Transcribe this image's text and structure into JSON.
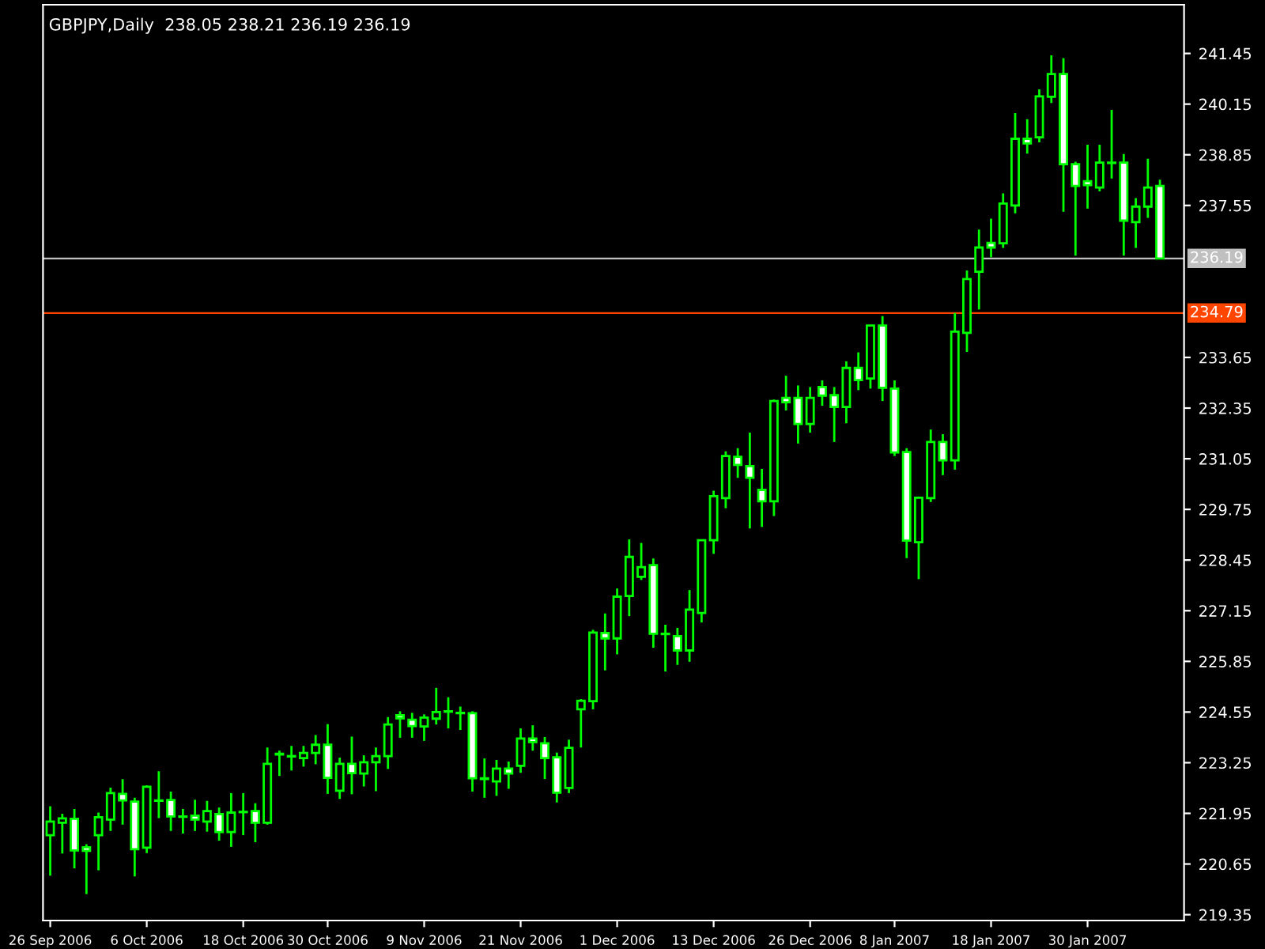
{
  "chart_data": {
    "type": "candlestick",
    "title": "GBPJPY,Daily  238.05 238.21 236.19 236.19",
    "categories": [
      "26 Sep 2006",
      null,
      null,
      null,
      null,
      null,
      null,
      null,
      "6 Oct 2006",
      null,
      null,
      null,
      null,
      null,
      null,
      null,
      "18 Oct 2006",
      null,
      null,
      null,
      null,
      null,
      null,
      "30 Oct 2006",
      null,
      null,
      null,
      null,
      null,
      null,
      null,
      "9 Nov 2006",
      null,
      null,
      null,
      null,
      null,
      null,
      null,
      "21 Nov 2006",
      null,
      null,
      null,
      null,
      null,
      null,
      null,
      "1 Dec 2006",
      null,
      null,
      null,
      null,
      null,
      null,
      null,
      "13 Dec 2006",
      null,
      null,
      null,
      null,
      null,
      null,
      null,
      "26 Dec 2006",
      null,
      null,
      null,
      null,
      null,
      null,
      "8 Jan 2007",
      null,
      null,
      null,
      null,
      null,
      null,
      null,
      "18 Jan 2007",
      null,
      null,
      null,
      null,
      null,
      null,
      null,
      "30 Jan 2007",
      null,
      null,
      null,
      null,
      null,
      null
    ],
    "color": "#00ff00",
    "ohlc": [
      [
        221.39,
        222.13,
        220.35,
        221.74
      ],
      [
        221.71,
        221.94,
        220.92,
        221.82
      ],
      [
        221.81,
        222.06,
        220.54,
        221.0
      ],
      [
        221.08,
        221.16,
        219.88,
        220.99
      ],
      [
        221.39,
        221.97,
        220.49,
        221.85
      ],
      [
        221.79,
        222.61,
        221.5,
        222.47
      ],
      [
        222.45,
        222.83,
        221.66,
        222.28
      ],
      [
        222.25,
        222.35,
        220.33,
        221.03
      ],
      [
        221.07,
        222.67,
        220.93,
        222.63
      ],
      [
        222.27,
        223.03,
        221.83,
        222.28
      ],
      [
        222.29,
        222.51,
        221.5,
        221.87
      ],
      [
        221.86,
        222.06,
        221.43,
        221.87
      ],
      [
        221.89,
        222.3,
        221.5,
        221.79
      ],
      [
        221.74,
        222.27,
        221.48,
        222.01
      ],
      [
        221.93,
        222.1,
        221.25,
        221.47
      ],
      [
        221.47,
        222.47,
        221.09,
        221.97
      ],
      [
        221.98,
        222.47,
        221.39,
        221.99
      ],
      [
        222.01,
        222.21,
        221.21,
        221.71
      ],
      [
        221.71,
        223.64,
        221.66,
        223.22
      ],
      [
        223.46,
        223.56,
        222.91,
        223.48
      ],
      [
        223.41,
        223.68,
        223.05,
        223.42
      ],
      [
        223.37,
        223.68,
        223.15,
        223.5
      ],
      [
        223.5,
        223.96,
        223.21,
        223.71
      ],
      [
        223.71,
        224.24,
        222.45,
        222.86
      ],
      [
        222.53,
        223.38,
        222.32,
        223.22
      ],
      [
        223.22,
        223.92,
        222.44,
        222.98
      ],
      [
        222.97,
        223.44,
        222.64,
        223.26
      ],
      [
        223.26,
        223.64,
        222.52,
        223.42
      ],
      [
        223.42,
        224.42,
        223.09,
        224.23
      ],
      [
        224.47,
        224.57,
        223.89,
        224.39
      ],
      [
        224.35,
        224.53,
        223.89,
        224.19
      ],
      [
        224.18,
        224.49,
        223.81,
        224.41
      ],
      [
        224.38,
        225.17,
        224.23,
        224.55
      ],
      [
        224.56,
        224.93,
        224.13,
        224.57
      ],
      [
        224.52,
        224.69,
        224.09,
        224.53
      ],
      [
        224.52,
        224.57,
        222.51,
        222.85
      ],
      [
        222.83,
        223.36,
        222.35,
        222.85
      ],
      [
        222.77,
        223.32,
        222.4,
        223.1
      ],
      [
        223.1,
        223.28,
        222.58,
        222.97
      ],
      [
        223.17,
        224.13,
        222.99,
        223.87
      ],
      [
        223.87,
        224.21,
        223.56,
        223.78
      ],
      [
        223.75,
        223.91,
        222.83,
        223.37
      ],
      [
        223.39,
        223.51,
        222.23,
        222.48
      ],
      [
        222.6,
        223.84,
        222.47,
        223.63
      ],
      [
        224.62,
        224.88,
        223.64,
        224.84
      ],
      [
        224.83,
        226.66,
        224.62,
        226.59
      ],
      [
        226.58,
        227.08,
        225.62,
        226.44
      ],
      [
        226.44,
        227.72,
        226.03,
        227.51
      ],
      [
        227.53,
        228.98,
        227.01,
        228.53
      ],
      [
        228.02,
        228.89,
        227.94,
        228.27
      ],
      [
        228.32,
        228.49,
        226.2,
        226.56
      ],
      [
        226.55,
        226.79,
        225.59,
        226.56
      ],
      [
        226.5,
        226.71,
        225.76,
        226.13
      ],
      [
        226.13,
        227.68,
        225.84,
        227.18
      ],
      [
        227.09,
        228.97,
        226.85,
        228.96
      ],
      [
        228.96,
        230.23,
        228.61,
        230.09
      ],
      [
        230.04,
        231.24,
        229.78,
        231.12
      ],
      [
        231.1,
        231.32,
        230.56,
        230.89
      ],
      [
        230.86,
        231.72,
        229.26,
        230.56
      ],
      [
        230.25,
        230.79,
        229.3,
        229.96
      ],
      [
        229.96,
        232.57,
        229.58,
        232.53
      ],
      [
        232.61,
        233.18,
        232.29,
        232.5
      ],
      [
        232.61,
        232.93,
        231.44,
        231.94
      ],
      [
        231.94,
        232.89,
        231.72,
        232.61
      ],
      [
        232.89,
        233.06,
        232.41,
        232.67
      ],
      [
        232.68,
        232.89,
        231.48,
        232.38
      ],
      [
        232.38,
        233.55,
        231.96,
        233.38
      ],
      [
        233.38,
        233.78,
        232.81,
        233.07
      ],
      [
        233.11,
        234.48,
        232.85,
        234.47
      ],
      [
        234.47,
        234.71,
        232.53,
        232.87
      ],
      [
        232.85,
        233.06,
        231.12,
        231.21
      ],
      [
        231.22,
        231.32,
        228.5,
        228.95
      ],
      [
        228.91,
        230.08,
        227.96,
        230.05
      ],
      [
        230.04,
        231.8,
        229.94,
        231.48
      ],
      [
        231.48,
        231.68,
        230.63,
        231.01
      ],
      [
        231.01,
        234.79,
        230.77,
        234.31
      ],
      [
        234.28,
        235.88,
        233.79,
        235.66
      ],
      [
        235.85,
        236.93,
        234.88,
        236.47
      ],
      [
        236.59,
        237.21,
        236.22,
        236.47
      ],
      [
        236.58,
        237.86,
        236.46,
        237.6
      ],
      [
        237.55,
        239.92,
        237.35,
        239.26
      ],
      [
        239.26,
        239.76,
        238.88,
        239.14
      ],
      [
        239.3,
        240.53,
        239.17,
        240.35
      ],
      [
        240.34,
        241.4,
        240.18,
        240.92
      ],
      [
        240.92,
        241.33,
        237.39,
        238.61
      ],
      [
        238.61,
        238.67,
        236.26,
        238.05
      ],
      [
        238.17,
        239.11,
        237.47,
        238.07
      ],
      [
        238.01,
        239.11,
        237.91,
        238.65
      ],
      [
        238.64,
        240.0,
        238.24,
        238.65
      ],
      [
        238.65,
        238.87,
        236.26,
        237.16
      ],
      [
        237.12,
        237.74,
        236.46,
        237.52
      ],
      [
        237.52,
        238.75,
        237.23,
        238.01
      ],
      [
        238.05,
        238.21,
        236.19,
        236.19
      ]
    ],
    "ylim": [
      219.2,
      242.7
    ],
    "yticks": [
      219.35,
      220.65,
      221.95,
      223.25,
      224.55,
      225.85,
      227.15,
      228.45,
      229.75,
      231.05,
      232.35,
      233.65,
      237.55,
      238.85,
      240.15,
      241.45
    ],
    "ref_lines": [
      {
        "axis": "y",
        "value": 236.19,
        "label": "236.19",
        "color": "#c0c0c0"
      },
      {
        "axis": "y",
        "value": 234.79,
        "label": "234.79",
        "color": "#ff4500"
      }
    ]
  }
}
